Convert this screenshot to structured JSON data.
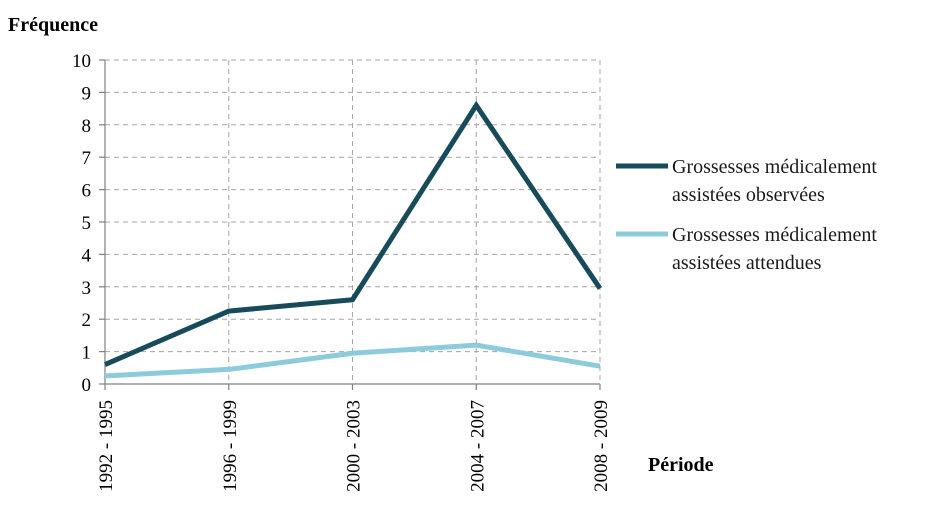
{
  "chart_data": {
    "type": "line",
    "ylabel": "Fréquence",
    "xlabel": "Période",
    "categories": [
      "1992 - 1995",
      "1996 - 1999",
      "2000 - 2003",
      "2004 - 2007",
      "2008 - 2009"
    ],
    "ylim": [
      0,
      10
    ],
    "yticks": [
      "0",
      "1",
      "2",
      "3",
      "4",
      "5",
      "6",
      "7",
      "8",
      "9",
      "10"
    ],
    "grid": true,
    "legend_position": "right",
    "series": [
      {
        "name_line1": "Grossesses médicalement",
        "name_line2": "assistées observées",
        "color": "#174a5a",
        "values": [
          0.6,
          2.25,
          2.6,
          8.6,
          2.95
        ]
      },
      {
        "name_line1": "Grossesses médicalement",
        "name_line2": "assistées attendues",
        "color": "#8ccbdb",
        "values": [
          0.25,
          0.45,
          0.95,
          1.2,
          0.55
        ]
      }
    ]
  }
}
